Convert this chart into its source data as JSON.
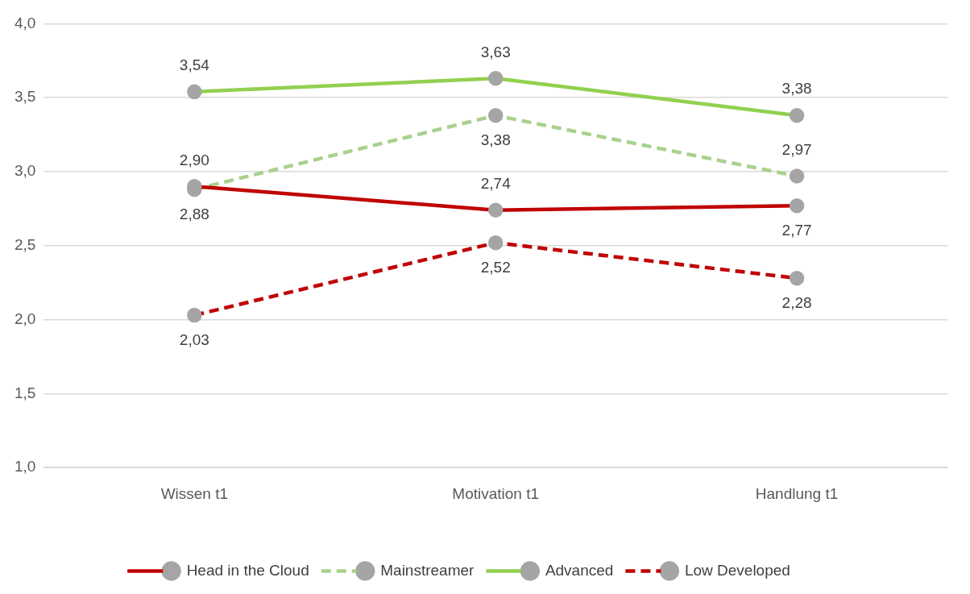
{
  "chart_data": {
    "type": "line",
    "categories": [
      "Wissen t1",
      "Motivation t1",
      "Handlung t1"
    ],
    "series": [
      {
        "name": "Head in the Cloud",
        "color": "#c00000",
        "line_style": "solid",
        "values": [
          2.9,
          2.74,
          2.77
        ],
        "value_labels": [
          "2,90",
          "2,74",
          "2,77"
        ]
      },
      {
        "name": "Mainstreamer",
        "color": "#a9d18e",
        "line_style": "dashed",
        "values": [
          2.88,
          3.38,
          2.97
        ],
        "value_labels": [
          "2,88",
          "3,38",
          "2,97"
        ]
      },
      {
        "name": "Advanced",
        "color": "#92d050",
        "line_style": "solid",
        "values": [
          3.54,
          3.63,
          3.38
        ],
        "value_labels": [
          "3,54",
          "3,63",
          "3,38"
        ]
      },
      {
        "name": "Low Developed",
        "color": "#c00000",
        "line_style": "dashed",
        "values": [
          2.03,
          2.52,
          2.28
        ],
        "value_labels": [
          "2,03",
          "2,52",
          "2,28"
        ]
      }
    ],
    "ylim": [
      1,
      4
    ],
    "yticks": [
      {
        "value": 1,
        "label": "1,0"
      },
      {
        "value": 1.5,
        "label": "1,5"
      },
      {
        "value": 2,
        "label": "2,0"
      },
      {
        "value": 2.5,
        "label": "2,5"
      },
      {
        "value": 3,
        "label": "3,0"
      },
      {
        "value": 3.5,
        "label": "3,5"
      },
      {
        "value": 4,
        "label": "4,0"
      }
    ],
    "grid": "y",
    "legend": "bottom",
    "marker": "circle"
  }
}
